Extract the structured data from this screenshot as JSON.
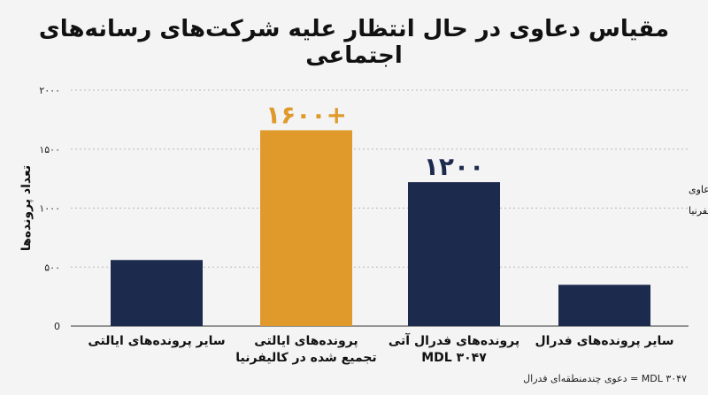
{
  "chart_data": {
    "type": "bar",
    "title": "مقیاس دعاوی در حال انتظار علیه شرکت‌های رسانه‌های اجتماعی",
    "ylabel": "تعداد پرونده‌ها",
    "ylim": [
      0,
      2000
    ],
    "yticks": [
      {
        "value": 0,
        "label": "0"
      },
      {
        "value": 500,
        "label": "۵۰۰"
      },
      {
        "value": 1000,
        "label": "۱۰۰۰"
      },
      {
        "value": 1500,
        "label": "۱۵۰۰"
      },
      {
        "value": 2000,
        "label": "۲۰۰۰"
      }
    ],
    "categories": [
      [
        "سایر پرونده‌های ایالتی"
      ],
      [
        "پرونده‌های ایالتی",
        "تجمیع شده در کالیفرنیا"
      ],
      [
        "پرونده‌های فدرال آتی",
        "MDL ۳۰۴۷"
      ],
      [
        "سایر پرونده‌های فدرال"
      ]
    ],
    "values": [
      560,
      1660,
      1220,
      350
    ],
    "bar_colors": [
      "#1c2a4d",
      "#e09a2c",
      "#1c2a4d",
      "#1c2a4d"
    ],
    "data_labels": [
      "",
      "۱۶۰۰+",
      "۱۲۰۰",
      ""
    ],
    "legend": [
      {
        "prefix": "سرمه‌ای:",
        "text": "سایر دعاوی",
        "color": "#1c2a4d"
      },
      {
        "prefix": "کهربایی:",
        "text": "پرونده‌های برجسته کالیفرنیا",
        "color": "#e09a2c"
      }
    ],
    "legend_position": "right",
    "grid": true,
    "footnote": "MDL ۳۰۴۷ = دعوی چندمنطقه‌ای فدرال"
  }
}
